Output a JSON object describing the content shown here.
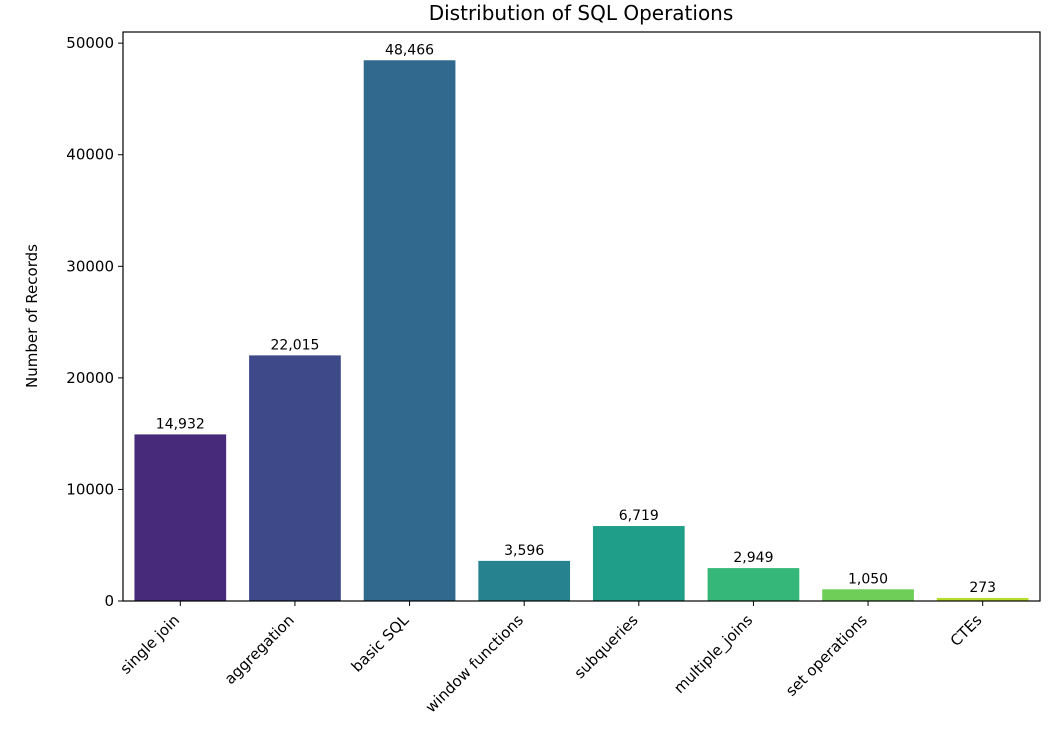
{
  "chart_data": {
    "type": "bar",
    "title": "Distribution of SQL Operations",
    "xlabel": "",
    "ylabel": "Number of Records",
    "categories": [
      "single join",
      "aggregation",
      "basic SQL",
      "window functions",
      "subqueries",
      "multiple_joins",
      "set operations",
      "CTEs"
    ],
    "values": [
      14932,
      22015,
      48466,
      3596,
      6719,
      2949,
      1050,
      273
    ],
    "data_labels": [
      "14,932",
      "22,015",
      "48,466",
      "3,596",
      "6,719",
      "2,949",
      "1,050",
      "273"
    ],
    "colors": [
      "#472a7a",
      "#3e4989",
      "#30688e",
      "#26828e",
      "#1f9e89",
      "#35b779",
      "#6ece58",
      "#b5de2b"
    ],
    "ylim": [
      0,
      51000
    ],
    "yticks": [
      0,
      10000,
      20000,
      30000,
      40000,
      50000
    ],
    "ytick_labels": [
      "0",
      "10000",
      "20000",
      "30000",
      "40000",
      "50000"
    ],
    "grid": false,
    "legend": "none"
  }
}
